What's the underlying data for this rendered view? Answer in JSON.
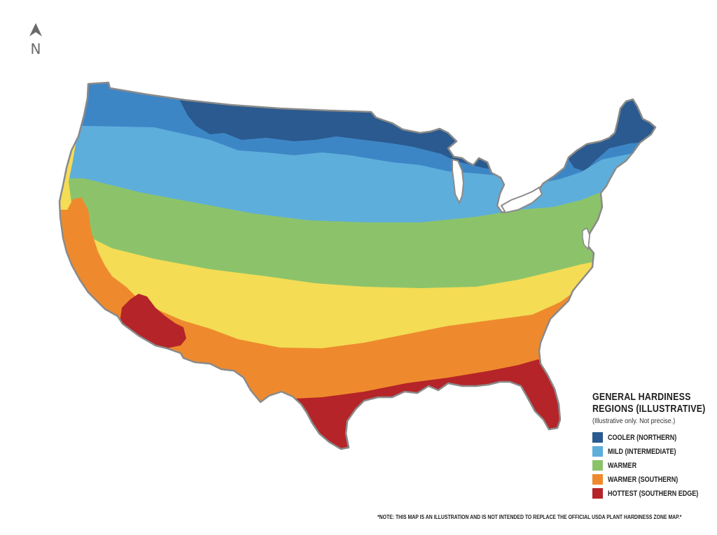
{
  "compass": {
    "letter": "N",
    "icon": "north-arrow-icon"
  },
  "legend": {
    "title_line1": "GENERAL HARDINESS",
    "title_line2": "REGIONS (ILLUSTRATIVE)",
    "subtitle": "(Illustrative only. Not precise.)",
    "items": [
      {
        "label": "COOLER (NORTHERN)",
        "color": "#2a5a8f"
      },
      {
        "label": "MILD (INTERMEDIATE)",
        "color": "#5eaedb"
      },
      {
        "label": "WARMER",
        "color": "#8cc36a"
      },
      {
        "label": "WARMER (SOUTHERN)",
        "color": "#ee8a2d"
      },
      {
        "label": "HOTTEST (SOUTHERN EDGE)",
        "color": "#b52428"
      }
    ]
  },
  "map": {
    "outline_color": "#8a8a8a",
    "bands": [
      {
        "name": "cooler-northern",
        "color": "#2a5a8f"
      },
      {
        "name": "mild-blue",
        "color": "#3d86c6"
      },
      {
        "name": "mild-intermediate",
        "color": "#5eaedb"
      },
      {
        "name": "warmer",
        "color": "#8cc36a"
      },
      {
        "name": "warmer-yellow",
        "color": "#f4dc55"
      },
      {
        "name": "warmer-southern",
        "color": "#ee8a2d"
      },
      {
        "name": "hottest-southern-edge",
        "color": "#b52428"
      }
    ]
  },
  "note": "*NOTE: THIS MAP IS AN ILLUSTRATION AND IS NOT INTENDED TO REPLACE THE OFFICIAL USDA PLANT HARDINESS ZONE MAP.*"
}
